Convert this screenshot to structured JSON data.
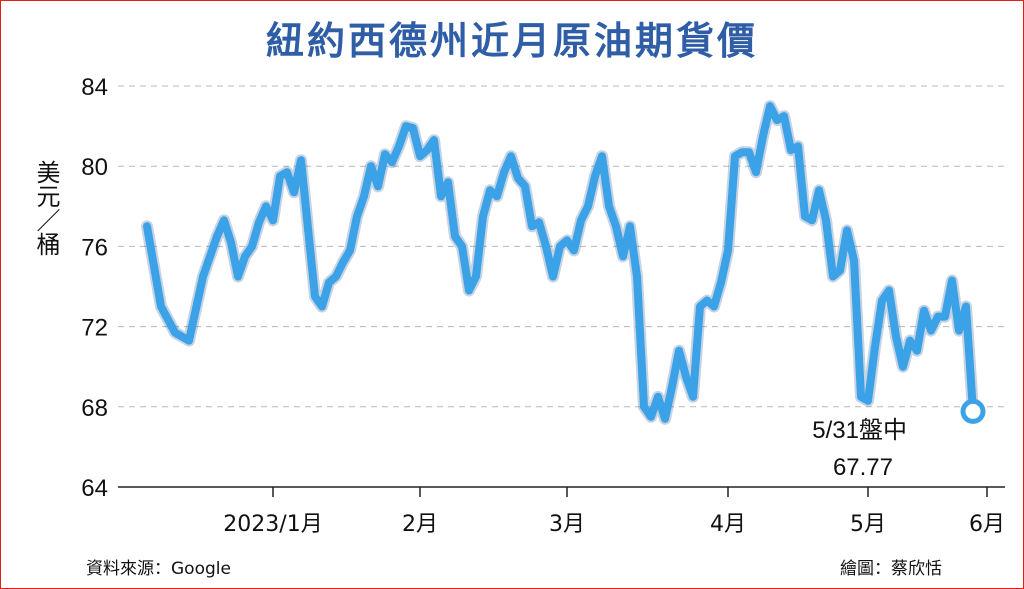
{
  "chart_data": {
    "type": "line",
    "title": "紐約西德州近月原油期貨價",
    "ylabel": "美元／桶",
    "ylim": [
      64,
      84
    ],
    "yticks": [
      "84",
      "80",
      "76",
      "72",
      "68",
      "64"
    ],
    "xticks": [
      "2023/1月",
      "2月",
      "3月",
      "4月",
      "5月",
      "6月"
    ],
    "grid": "horizontal-dashed",
    "line_color": "#3ba2e8",
    "series": [
      {
        "values": [
          [
            0,
            77.0
          ],
          [
            2,
            73.0
          ],
          [
            4,
            71.7
          ],
          [
            6,
            71.3
          ],
          [
            8,
            74.5
          ],
          [
            9,
            75.5
          ],
          [
            10,
            76.5
          ],
          [
            11,
            77.3
          ],
          [
            12,
            76.2
          ],
          [
            13,
            74.5
          ],
          [
            14,
            75.5
          ],
          [
            15,
            76.0
          ],
          [
            16,
            77.2
          ],
          [
            17,
            78.0
          ],
          [
            18,
            77.3
          ],
          [
            19,
            79.5
          ],
          [
            20,
            79.7
          ],
          [
            21,
            78.7
          ],
          [
            22,
            80.3
          ],
          [
            24,
            73.5
          ],
          [
            25,
            73.0
          ],
          [
            26,
            74.2
          ],
          [
            27,
            74.5
          ],
          [
            28,
            75.2
          ],
          [
            29,
            75.8
          ],
          [
            30,
            77.5
          ],
          [
            31,
            78.5
          ],
          [
            32,
            80.0
          ],
          [
            33,
            79.0
          ],
          [
            34,
            80.6
          ],
          [
            35,
            80.2
          ],
          [
            36,
            81.0
          ],
          [
            37,
            82.0
          ],
          [
            38,
            81.9
          ],
          [
            39,
            80.5
          ],
          [
            40,
            80.8
          ],
          [
            41,
            81.3
          ],
          [
            42,
            78.5
          ],
          [
            43,
            79.2
          ],
          [
            44,
            76.5
          ],
          [
            45,
            76.0
          ],
          [
            46,
            73.8
          ],
          [
            47,
            74.5
          ],
          [
            48,
            77.5
          ],
          [
            49,
            78.8
          ],
          [
            50,
            78.5
          ],
          [
            51,
            79.7
          ],
          [
            52,
            80.5
          ],
          [
            53,
            79.4
          ],
          [
            54,
            79.0
          ],
          [
            55,
            77.0
          ],
          [
            56,
            77.2
          ],
          [
            57,
            76.0
          ],
          [
            58,
            74.5
          ],
          [
            59,
            76.0
          ],
          [
            60,
            76.3
          ],
          [
            61,
            75.8
          ],
          [
            62,
            77.3
          ],
          [
            63,
            78.0
          ],
          [
            64,
            79.5
          ],
          [
            65,
            80.5
          ],
          [
            66,
            78.0
          ],
          [
            67,
            77.0
          ],
          [
            68,
            75.5
          ],
          [
            69,
            77.0
          ],
          [
            70,
            74.5
          ],
          [
            71,
            68.0
          ],
          [
            72,
            67.5
          ],
          [
            73,
            68.5
          ],
          [
            74,
            67.4
          ],
          [
            75,
            69.0
          ],
          [
            76,
            70.8
          ],
          [
            77,
            69.5
          ],
          [
            78,
            68.5
          ],
          [
            79,
            73.0
          ],
          [
            80,
            73.3
          ],
          [
            81,
            73.0
          ],
          [
            82,
            74.2
          ],
          [
            83,
            75.8
          ],
          [
            84,
            80.5
          ],
          [
            85,
            80.7
          ],
          [
            86,
            80.7
          ],
          [
            87,
            79.7
          ],
          [
            88,
            81.5
          ],
          [
            89,
            83.0
          ],
          [
            90,
            82.3
          ],
          [
            91,
            82.5
          ],
          [
            92,
            80.8
          ],
          [
            93,
            81.0
          ],
          [
            94,
            77.5
          ],
          [
            95,
            77.3
          ],
          [
            96,
            78.8
          ],
          [
            97,
            77.3
          ],
          [
            98,
            74.5
          ],
          [
            99,
            74.8
          ],
          [
            100,
            76.8
          ],
          [
            101,
            75.3
          ],
          [
            102,
            68.5
          ],
          [
            103,
            68.3
          ],
          [
            104,
            71.0
          ],
          [
            105,
            73.3
          ],
          [
            106,
            73.8
          ],
          [
            107,
            71.5
          ],
          [
            108,
            70.0
          ],
          [
            109,
            71.3
          ],
          [
            110,
            70.8
          ],
          [
            111,
            72.8
          ],
          [
            112,
            71.8
          ],
          [
            113,
            72.5
          ],
          [
            114,
            72.5
          ],
          [
            115,
            74.3
          ],
          [
            116,
            71.8
          ],
          [
            117,
            73.0
          ],
          [
            118,
            67.77
          ]
        ]
      }
    ],
    "annotation": {
      "label": "5/31盤中",
      "value": "67.77"
    }
  },
  "footer": {
    "source": "資料來源：Google",
    "credit": "繪圖：蔡欣恬"
  }
}
